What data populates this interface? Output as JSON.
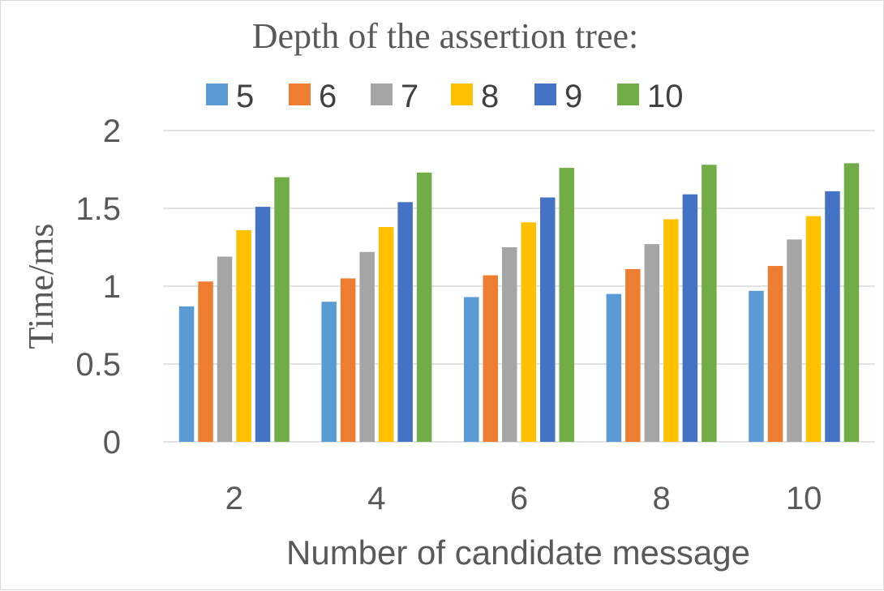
{
  "chart_data": {
    "type": "bar",
    "title": "Depth of the assertion tree:",
    "xlabel": "Number of candidate message",
    "ylabel": "Time/ms",
    "categories": [
      "2",
      "4",
      "6",
      "8",
      "10"
    ],
    "ylim": [
      0,
      2
    ],
    "yticks": [
      "0",
      "0.5",
      "1",
      "1.5",
      "2"
    ],
    "grid": true,
    "legend_position": "top",
    "colors": [
      "#5b9bd5",
      "#ed7d31",
      "#a5a5a5",
      "#ffc000",
      "#4472c4",
      "#70ad47"
    ],
    "series": [
      {
        "name": "5",
        "values": [
          0.87,
          0.9,
          0.93,
          0.95,
          0.97
        ]
      },
      {
        "name": "6",
        "values": [
          1.03,
          1.05,
          1.07,
          1.11,
          1.13
        ]
      },
      {
        "name": "7",
        "values": [
          1.19,
          1.22,
          1.25,
          1.27,
          1.3
        ]
      },
      {
        "name": "8",
        "values": [
          1.36,
          1.38,
          1.41,
          1.43,
          1.45
        ]
      },
      {
        "name": "9",
        "values": [
          1.51,
          1.54,
          1.57,
          1.59,
          1.61
        ]
      },
      {
        "name": "10",
        "values": [
          1.7,
          1.73,
          1.76,
          1.78,
          1.79
        ]
      }
    ]
  }
}
